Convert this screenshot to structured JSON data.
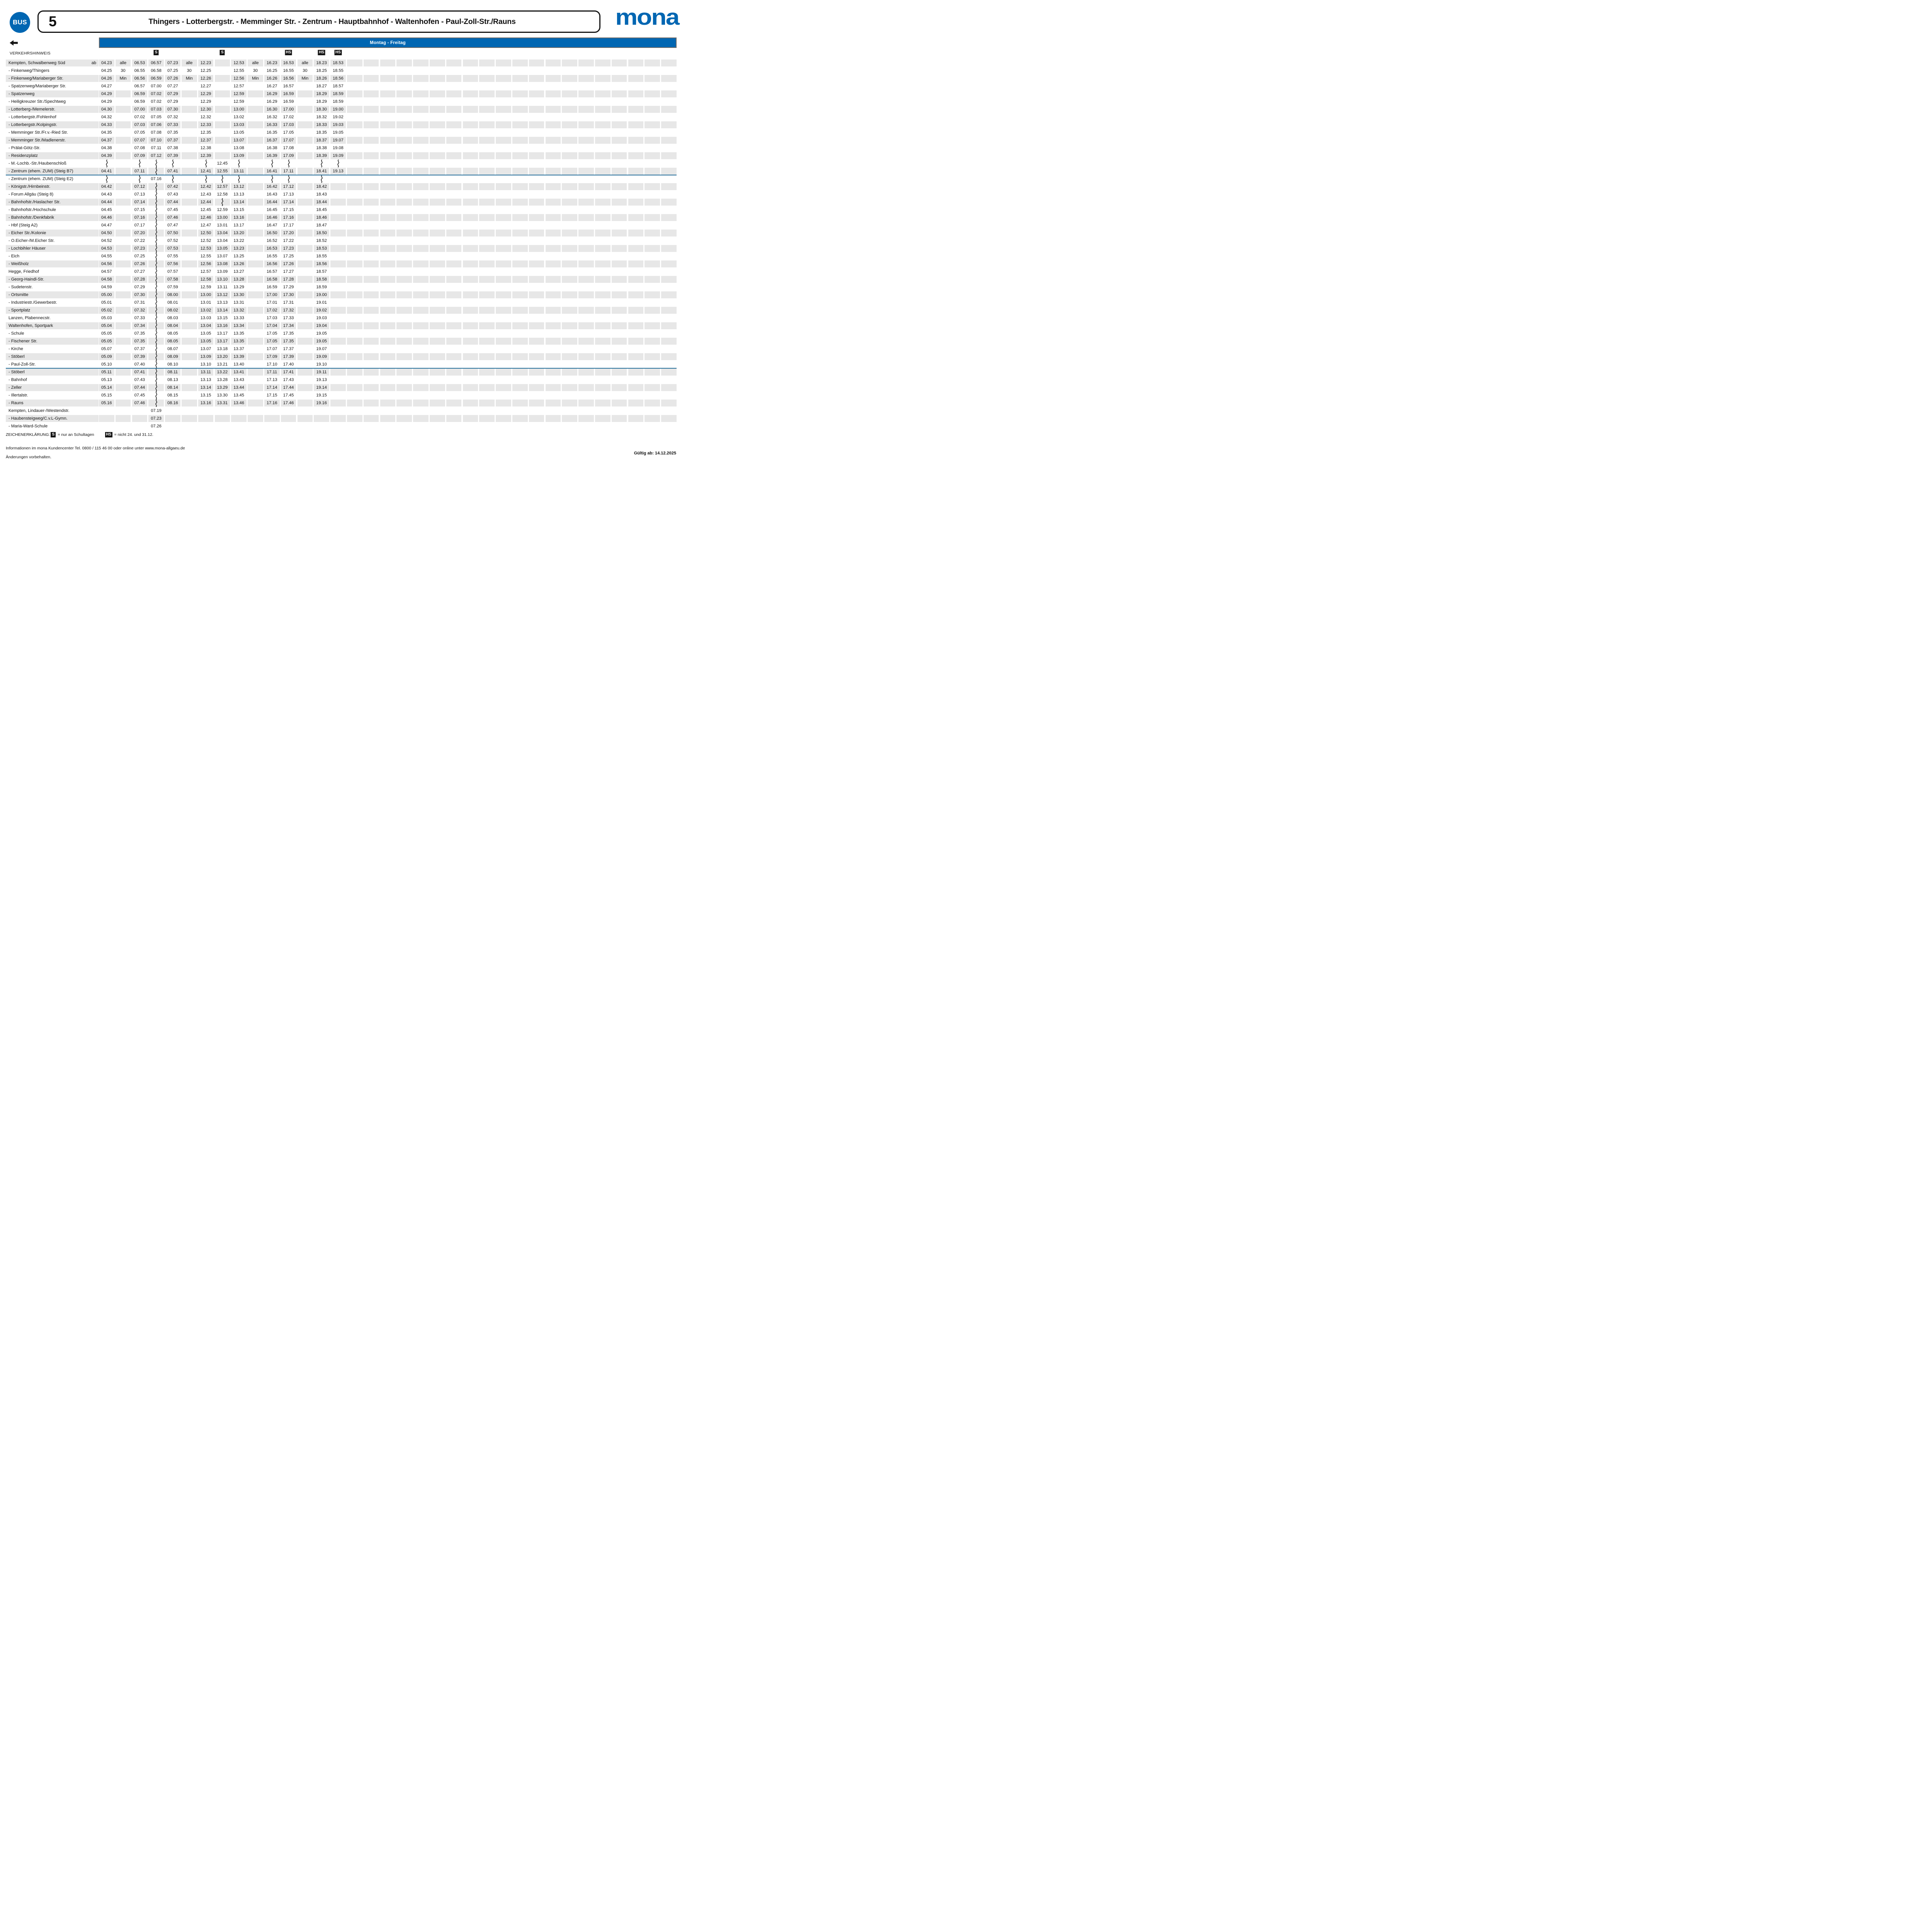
{
  "header": {
    "badge": "BUS",
    "line_number": "5",
    "route": "Thingers - Lotterbergstr. - Memminger Str. - Zentrum - Hauptbahnhof - Waltenhofen - Paul-Zoll-Str./Rauns",
    "brand": "mona"
  },
  "schedule_bar": {
    "label": "Montag - Freitag"
  },
  "table": {
    "hint_label": "VERKEHRSHINWEIS",
    "ab_label": "ab",
    "column_markers": [
      {
        "col": 3,
        "label": "S"
      },
      {
        "col": 7,
        "label": "S"
      },
      {
        "col": 11,
        "label": "HS"
      },
      {
        "col": 13,
        "label": "HS"
      },
      {
        "col": 14,
        "label": "HS"
      }
    ],
    "num_time_columns": 15,
    "num_trailing_empty_columns": 20,
    "dividers_after_rows": [
      15,
      40
    ],
    "rows": [
      {
        "name": "Kempten, Schwalbenweg Süd",
        "ab": true,
        "cells": [
          "04.23",
          "alle",
          "06.53",
          "06.57",
          "07.23",
          "alle",
          "12.23",
          "",
          "12.53",
          "alle",
          "16.23",
          "16.53",
          "alle",
          "18.23",
          "18.53"
        ]
      },
      {
        "name": "- Finkenweg/Thingers",
        "cells": [
          "04.25",
          "30",
          "06.55",
          "06.58",
          "07.25",
          "30",
          "12.25",
          "",
          "12.55",
          "30",
          "16.25",
          "16.55",
          "30",
          "18.25",
          "18.55"
        ]
      },
      {
        "name": "- Finkenweg/Mariaberger Str.",
        "cells": [
          "04.26",
          "Min",
          "06.56",
          "06.59",
          "07.26",
          "Min",
          "12.26",
          "",
          "12.56",
          "Min",
          "16.26",
          "16.56",
          "Min",
          "18.26",
          "18.56"
        ]
      },
      {
        "name": "- Spatzenweg/Mariaberger Str.",
        "cells": [
          "04.27",
          "",
          "06.57",
          "07.00",
          "07.27",
          "",
          "12.27",
          "",
          "12.57",
          "",
          "16.27",
          "16.57",
          "",
          "18.27",
          "18.57"
        ]
      },
      {
        "name": "- Spatzenweg",
        "cells": [
          "04.29",
          "",
          "06.59",
          "07.02",
          "07.29",
          "",
          "12.29",
          "",
          "12.59",
          "",
          "16.29",
          "16.59",
          "",
          "18.29",
          "18.59"
        ]
      },
      {
        "name": "- Heiligkreuzer Str./Spechtweg",
        "cells": [
          "04.29",
          "",
          "06.59",
          "07.02",
          "07.29",
          "",
          "12.29",
          "",
          "12.59",
          "",
          "16.29",
          "16.59",
          "",
          "18.29",
          "18.59"
        ]
      },
      {
        "name": "- Lotterberg-/Memelerstr.",
        "cells": [
          "04.30",
          "",
          "07.00",
          "07.03",
          "07.30",
          "",
          "12.30",
          "",
          "13.00",
          "",
          "16.30",
          "17.00",
          "",
          "18.30",
          "19.00"
        ]
      },
      {
        "name": "- Lotterbergstr./Fohlenhof",
        "cells": [
          "04.32",
          "",
          "07.02",
          "07.05",
          "07.32",
          "",
          "12.32",
          "",
          "13.02",
          "",
          "16.32",
          "17.02",
          "",
          "18.32",
          "19.02"
        ]
      },
      {
        "name": "- Lotterbergstr./Kolpingstr.",
        "cells": [
          "04.33",
          "",
          "07.03",
          "07.06",
          "07.33",
          "",
          "12.33",
          "",
          "13.03",
          "",
          "16.33",
          "17.03",
          "",
          "18.33",
          "19.03"
        ]
      },
      {
        "name": "- Memminger Str./Fr.v.-Ried Str.",
        "cells": [
          "04.35",
          "",
          "07.05",
          "07.08",
          "07.35",
          "",
          "12.35",
          "",
          "13.05",
          "",
          "16.35",
          "17.05",
          "",
          "18.35",
          "19.05"
        ]
      },
      {
        "name": "- Memminger Str./Madlenerstr.",
        "cells": [
          "04.37",
          "",
          "07.07",
          "07.10",
          "07.37",
          "",
          "12.37",
          "",
          "13.07",
          "",
          "16.37",
          "17.07",
          "",
          "18.37",
          "19.07"
        ]
      },
      {
        "name": "- Prälat-Götz-Str.",
        "cells": [
          "04.38",
          "",
          "07.08",
          "07.11",
          "07.38",
          "",
          "12.38",
          "",
          "13.08",
          "",
          "16.38",
          "17.08",
          "",
          "18.38",
          "19.08"
        ]
      },
      {
        "name": "- Residenzplatz",
        "cells": [
          "04.39",
          "",
          "07.09",
          "07.12",
          "07.39",
          "",
          "12.39",
          "",
          "13.09",
          "",
          "16.39",
          "17.09",
          "",
          "18.39",
          "19.09"
        ]
      },
      {
        "name": "- M.-Lochb.-Str./Haubenschloß",
        "cells": [
          "~",
          "",
          "~",
          "~",
          "~",
          "",
          "~",
          "12.45",
          "~",
          "",
          "~",
          "~",
          "",
          "~",
          "~"
        ]
      },
      {
        "name": "- Zentrum (ehem. ZUM) (Steig B7)",
        "cells": [
          "04.41",
          "",
          "07.11",
          "~",
          "07.41",
          "",
          "12.41",
          "12.55",
          "13.11",
          "",
          "16.41",
          "17.11",
          "",
          "18.41",
          "19.13"
        ]
      },
      {
        "name": "- Zentrum (ehem. ZUM) (Steig E2)",
        "cells": [
          "~",
          "",
          "~",
          "07.16",
          "~",
          "",
          "~",
          "~",
          "~",
          "",
          "~",
          "~",
          "",
          "~",
          ""
        ]
      },
      {
        "name": "- Königstr./Hirnbeinstr.",
        "cells": [
          "04.42",
          "",
          "07.12",
          "~",
          "07.42",
          "",
          "12.42",
          "12.57",
          "13.12",
          "",
          "16.42",
          "17.12",
          "",
          "18.42",
          ""
        ]
      },
      {
        "name": "- Forum Allgäu (Steig 8)",
        "cells": [
          "04.43",
          "",
          "07.13",
          "~",
          "07.43",
          "",
          "12.43",
          "12.58",
          "13.13",
          "",
          "16.43",
          "17.13",
          "",
          "18.43",
          ""
        ]
      },
      {
        "name": "- Bahnhofstr./Haslacher Str.",
        "cells": [
          "04.44",
          "",
          "07.14",
          "~",
          "07.44",
          "",
          "12.44",
          "~",
          "13.14",
          "",
          "16.44",
          "17.14",
          "",
          "18.44",
          ""
        ]
      },
      {
        "name": "- Bahnhofstr./Hochschule",
        "cells": [
          "04.45",
          "",
          "07.15",
          "~",
          "07.45",
          "",
          "12.45",
          "12.59",
          "13.15",
          "",
          "16.45",
          "17.15",
          "",
          "18.45",
          ""
        ]
      },
      {
        "name": "- Bahnhofstr./Denkfabrik",
        "cells": [
          "04.46",
          "",
          "07.16",
          "~",
          "07.46",
          "",
          "12.46",
          "13.00",
          "13.16",
          "",
          "16.46",
          "17.16",
          "",
          "18.46",
          ""
        ]
      },
      {
        "name": "- Hbf (Steig A2)",
        "cells": [
          "04.47",
          "",
          "07.17",
          "~",
          "07.47",
          "",
          "12.47",
          "13.01",
          "13.17",
          "",
          "16.47",
          "17.17",
          "",
          "18.47",
          ""
        ]
      },
      {
        "name": "- Eicher Str./Kolonie",
        "cells": [
          "04.50",
          "",
          "07.20",
          "~",
          "07.50",
          "",
          "12.50",
          "13.04",
          "13.20",
          "",
          "16.50",
          "17.20",
          "",
          "18.50",
          ""
        ]
      },
      {
        "name": "- O.Eicher-/M.Eicher Str.",
        "cells": [
          "04.52",
          "",
          "07.22",
          "~",
          "07.52",
          "",
          "12.52",
          "13.04",
          "13.22",
          "",
          "16.52",
          "17.22",
          "",
          "18.52",
          ""
        ]
      },
      {
        "name": "- Lochbihler Häuser",
        "cells": [
          "04.53",
          "",
          "07.23",
          "~",
          "07.53",
          "",
          "12.53",
          "13.05",
          "13.23",
          "",
          "16.53",
          "17.23",
          "",
          "18.53",
          ""
        ]
      },
      {
        "name": "- Eich",
        "cells": [
          "04.55",
          "",
          "07.25",
          "~",
          "07.55",
          "",
          "12.55",
          "13.07",
          "13.25",
          "",
          "16.55",
          "17.25",
          "",
          "18.55",
          ""
        ]
      },
      {
        "name": "- Weißholz",
        "cells": [
          "04.56",
          "",
          "07.26",
          "~",
          "07.56",
          "",
          "12.56",
          "13.08",
          "13.26",
          "",
          "16.56",
          "17.26",
          "",
          "18.56",
          ""
        ]
      },
      {
        "name": "Hegge, Friedhof",
        "cells": [
          "04.57",
          "",
          "07.27",
          "~",
          "07.57",
          "",
          "12.57",
          "13.09",
          "13.27",
          "",
          "16.57",
          "17.27",
          "",
          "18.57",
          ""
        ]
      },
      {
        "name": "- Georg-Haindl-Str.",
        "cells": [
          "04.58",
          "",
          "07.28",
          "~",
          "07.58",
          "",
          "12.58",
          "13.10",
          "13.28",
          "",
          "16.58",
          "17.28",
          "",
          "18.58",
          ""
        ]
      },
      {
        "name": "- Sudetenstr.",
        "cells": [
          "04.59",
          "",
          "07.29",
          "~",
          "07.59",
          "",
          "12.59",
          "13.11",
          "13.29",
          "",
          "16.59",
          "17.29",
          "",
          "18.59",
          ""
        ]
      },
      {
        "name": "- Ortsmitte",
        "cells": [
          "05.00",
          "",
          "07.30",
          "~",
          "08.00",
          "",
          "13.00",
          "13.12",
          "13.30",
          "",
          "17.00",
          "17.30",
          "",
          "19.00",
          ""
        ]
      },
      {
        "name": "- Industriestr./Gewerbestr.",
        "cells": [
          "05.01",
          "",
          "07.31",
          "~",
          "08.01",
          "",
          "13.01",
          "13.13",
          "13.31",
          "",
          "17.01",
          "17.31",
          "",
          "19.01",
          ""
        ]
      },
      {
        "name": "- Sportplatz",
        "cells": [
          "05.02",
          "",
          "07.32",
          "~",
          "08.02",
          "",
          "13.02",
          "13.14",
          "13.32",
          "",
          "17.02",
          "17.32",
          "",
          "19.02",
          ""
        ]
      },
      {
        "name": "Lanzen, Plabennecstr.",
        "cells": [
          "05.03",
          "",
          "07.33",
          "~",
          "08.03",
          "",
          "13.03",
          "13.15",
          "13.33",
          "",
          "17.03",
          "17.33",
          "",
          "19.03",
          ""
        ]
      },
      {
        "name": "Waltenhofen, Sportpark",
        "cells": [
          "05.04",
          "",
          "07.34",
          "~",
          "08.04",
          "",
          "13.04",
          "13.16",
          "13.34",
          "",
          "17.04",
          "17.34",
          "",
          "19.04",
          ""
        ]
      },
      {
        "name": "- Schule",
        "cells": [
          "05.05",
          "",
          "07.35",
          "~",
          "08.05",
          "",
          "13.05",
          "13.17",
          "13.35",
          "",
          "17.05",
          "17.35",
          "",
          "19.05",
          ""
        ]
      },
      {
        "name": "- Fischener Str.",
        "cells": [
          "05.05",
          "",
          "07.35",
          "~",
          "08.05",
          "",
          "13.05",
          "13.17",
          "13.35",
          "",
          "17.05",
          "17.35",
          "",
          "19.05",
          ""
        ]
      },
      {
        "name": "- Kirche",
        "cells": [
          "05.07",
          "",
          "07.37",
          "~",
          "08.07",
          "",
          "13.07",
          "13.18",
          "13.37",
          "",
          "17.07",
          "17.37",
          "",
          "19.07",
          ""
        ]
      },
      {
        "name": "- Stöberl",
        "cells": [
          "05.09",
          "",
          "07.39",
          "~",
          "08.09",
          "",
          "13.09",
          "13.20",
          "13.39",
          "",
          "17.09",
          "17.39",
          "",
          "19.09",
          ""
        ]
      },
      {
        "name": "- Paul-Zoll-Str.",
        "cells": [
          "05.10",
          "",
          "07.40",
          "~",
          "08.10",
          "",
          "13.10",
          "13.21",
          "13.40",
          "",
          "17.10",
          "17.40",
          "",
          "19.10",
          ""
        ]
      },
      {
        "name": "- Stöberl",
        "cells": [
          "05.11",
          "",
          "07.41",
          "~",
          "08.11",
          "",
          "13.11",
          "13.22",
          "13.41",
          "",
          "17.11",
          "17.41",
          "",
          "19.11",
          ""
        ]
      },
      {
        "name": "- Bahnhof",
        "cells": [
          "05.13",
          "",
          "07.43",
          "~",
          "08.13",
          "",
          "13.13",
          "13.28",
          "13.43",
          "",
          "17.13",
          "17.43",
          "",
          "19.13",
          ""
        ]
      },
      {
        "name": "- Zeller",
        "cells": [
          "05.14",
          "",
          "07.44",
          "~",
          "08.14",
          "",
          "13.14",
          "13.29",
          "13.44",
          "",
          "17.14",
          "17.44",
          "",
          "19.14",
          ""
        ]
      },
      {
        "name": "- Illertalstr.",
        "cells": [
          "05.15",
          "",
          "07.45",
          "~",
          "08.15",
          "",
          "13.15",
          "13.30",
          "13.45",
          "",
          "17.15",
          "17.45",
          "",
          "19.15",
          ""
        ]
      },
      {
        "name": "- Rauns",
        "cells": [
          "05.16",
          "",
          "07.46",
          "~",
          "08.16",
          "",
          "13.16",
          "13.31",
          "13.46",
          "",
          "17.16",
          "17.46",
          "",
          "19.16",
          ""
        ]
      },
      {
        "name": "Kempten, Lindauer-/Westendstr.",
        "cells": [
          "",
          "",
          "",
          "07.19",
          "",
          "",
          "",
          "",
          "",
          "",
          "",
          "",
          "",
          "",
          ""
        ]
      },
      {
        "name": "- Haubensteigweg/C.v.L-Gymn.",
        "cells": [
          "",
          "",
          "",
          "07.23",
          "",
          "",
          "",
          "",
          "",
          "",
          "",
          "",
          "",
          "",
          ""
        ]
      },
      {
        "name": "- Maria-Ward-Schule",
        "cells": [
          "",
          "",
          "",
          "07.26",
          "",
          "",
          "",
          "",
          "",
          "",
          "",
          "",
          "",
          "",
          ""
        ]
      }
    ]
  },
  "legend": {
    "title": "ZEICHENERKLÄRUNG:",
    "items": [
      {
        "symbol": "S",
        "text": "= nur an Schultagen"
      },
      {
        "symbol": "HS",
        "text": "= nicht 24. und 31.12."
      }
    ]
  },
  "footer": {
    "info": "Informationen im mona Kundencenter Tel. 0800 / 115 46 00 oder online unter www.mona-allgaeu.de",
    "note": "Änderungen vorbehalten.",
    "valid_from": "Gültig ab: 14.12.2025"
  },
  "colors": {
    "brand_blue": "#0066b2",
    "stripe_gray": "#e7e7e7",
    "bar_border_gray": "#6a6a6a",
    "divider_blue": "#26709b",
    "text_black": "#111111"
  }
}
